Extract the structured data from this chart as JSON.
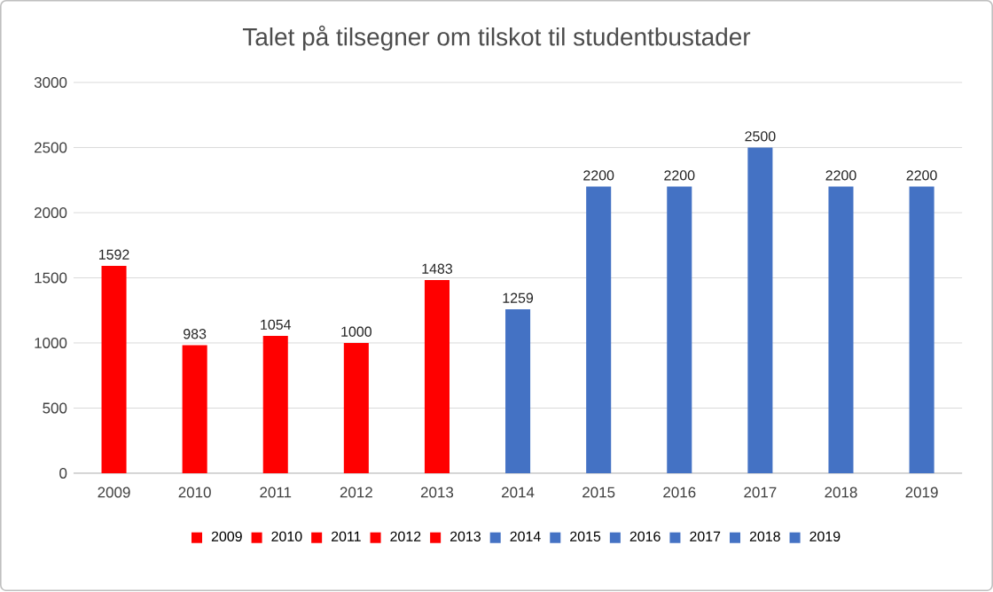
{
  "chart_data": {
    "type": "bar",
    "title": "Talet på tilsegner om tilskot til studentbustader",
    "categories": [
      "2009",
      "2010",
      "2011",
      "2012",
      "2013",
      "2014",
      "2015",
      "2016",
      "2017",
      "2018",
      "2019"
    ],
    "series": [
      {
        "name": "2009",
        "color": "#ff0000",
        "values": [
          1592,
          null,
          null,
          null,
          null,
          null,
          null,
          null,
          null,
          null,
          null
        ]
      },
      {
        "name": "2010",
        "color": "#ff0000",
        "values": [
          null,
          983,
          null,
          null,
          null,
          null,
          null,
          null,
          null,
          null,
          null
        ]
      },
      {
        "name": "2011",
        "color": "#ff0000",
        "values": [
          null,
          null,
          1054,
          null,
          null,
          null,
          null,
          null,
          null,
          null,
          null
        ]
      },
      {
        "name": "2012",
        "color": "#ff0000",
        "values": [
          null,
          null,
          null,
          1000,
          null,
          null,
          null,
          null,
          null,
          null,
          null
        ]
      },
      {
        "name": "2013",
        "color": "#ff0000",
        "values": [
          null,
          null,
          null,
          null,
          1483,
          null,
          null,
          null,
          null,
          null,
          null
        ]
      },
      {
        "name": "2014",
        "color": "#4472c4",
        "values": [
          null,
          null,
          null,
          null,
          null,
          1259,
          null,
          null,
          null,
          null,
          null
        ]
      },
      {
        "name": "2015",
        "color": "#4472c4",
        "values": [
          null,
          null,
          null,
          null,
          null,
          null,
          2200,
          null,
          null,
          null,
          null
        ]
      },
      {
        "name": "2016",
        "color": "#4472c4",
        "values": [
          null,
          null,
          null,
          null,
          null,
          null,
          null,
          2200,
          null,
          null,
          null
        ]
      },
      {
        "name": "2017",
        "color": "#4472c4",
        "values": [
          null,
          null,
          null,
          null,
          null,
          null,
          null,
          null,
          2500,
          null,
          null
        ]
      },
      {
        "name": "2018",
        "color": "#4472c4",
        "values": [
          null,
          null,
          null,
          null,
          null,
          null,
          null,
          null,
          null,
          2200,
          null
        ]
      },
      {
        "name": "2019",
        "color": "#4472c4",
        "values": [
          null,
          null,
          null,
          null,
          null,
          null,
          null,
          null,
          null,
          null,
          2200
        ]
      }
    ],
    "ylim": [
      0,
      3000
    ],
    "yticks": [
      0,
      500,
      1000,
      1500,
      2000,
      2500,
      3000
    ],
    "grid": "y",
    "legend": "bottom",
    "data_labels": true
  }
}
